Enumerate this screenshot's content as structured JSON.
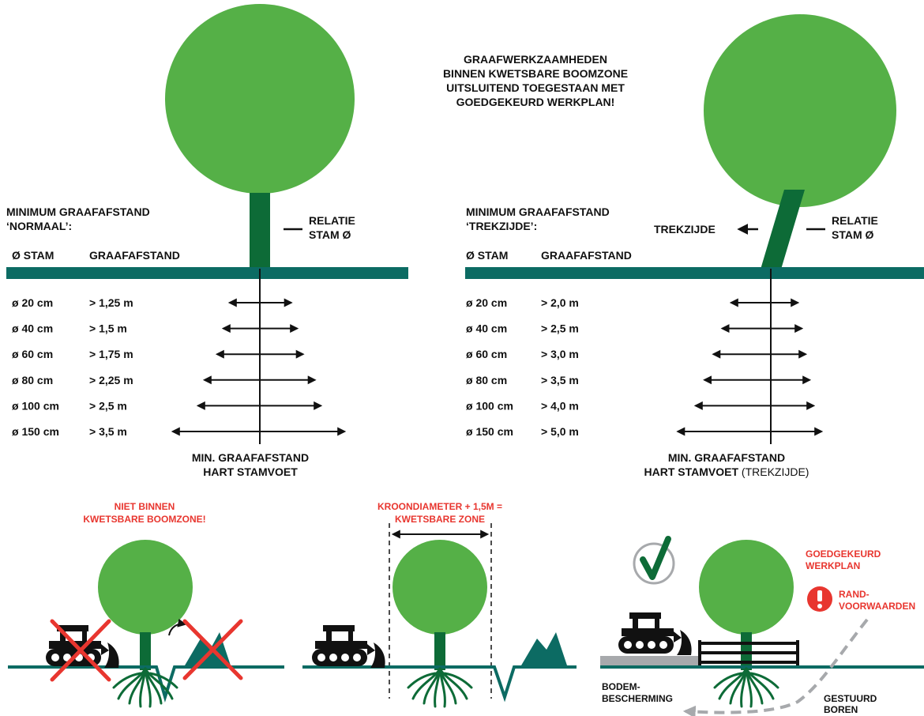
{
  "colors": {
    "tree_green": "#55b047",
    "trunk_green": "#0d6b37",
    "ground_teal": "#0c6b63",
    "warning_red": "#e8362f",
    "arrow_black": "#111111",
    "protection_gray": "#a7a9ac"
  },
  "notice": {
    "lines": [
      "GRAAFWERKZAAMHEDEN",
      "BINNEN KWETSBARE BOOMZONE",
      "UITSLUITEND TOEGESTAAN MET",
      "GOEDGEKEURD WERKPLAN!"
    ]
  },
  "normal": {
    "heading_line1": "MINIMUM GRAAFAFSTAND",
    "heading_line2": "‘NORMAAL’:",
    "col_stem": "Ø STAM",
    "col_distance": "GRAAFAFSTAND",
    "relation_line1": "RELATIE",
    "relation_line2": "STAM Ø",
    "rows": [
      {
        "stem": "ø  20 cm",
        "distance": "> 1,25 m",
        "distance_m": 1.25
      },
      {
        "stem": "ø  40 cm",
        "distance": "> 1,5 m",
        "distance_m": 1.5
      },
      {
        "stem": "ø  60 cm",
        "distance": "> 1,75 m",
        "distance_m": 1.75
      },
      {
        "stem": "ø  80 cm",
        "distance": "> 2,25 m",
        "distance_m": 2.25
      },
      {
        "stem": "ø 100 cm",
        "distance": "> 2,5 m",
        "distance_m": 2.5
      },
      {
        "stem": "ø 150 cm",
        "distance": "> 3,5 m",
        "distance_m": 3.5
      }
    ],
    "footer_line1": "MIN. GRAAFAFSTAND",
    "footer_line2": "HART STAMVOET"
  },
  "pull": {
    "heading_line1": "MINIMUM GRAAFAFSTAND",
    "heading_line2": "‘TREKZIJDE’:",
    "col_stem": "Ø STAM",
    "col_distance": "GRAAFAFSTAND",
    "pull_side_label": "TREKZIJDE",
    "relation_line1": "RELATIE",
    "relation_line2": "STAM Ø",
    "rows": [
      {
        "stem": "ø  20 cm",
        "distance": "> 2,0 m",
        "distance_m": 2.0
      },
      {
        "stem": "ø  40 cm",
        "distance": "> 2,5 m",
        "distance_m": 2.5
      },
      {
        "stem": "ø  60 cm",
        "distance": "> 3,0 m",
        "distance_m": 3.0
      },
      {
        "stem": "ø  80 cm",
        "distance": "> 3,5 m",
        "distance_m": 3.5
      },
      {
        "stem": "ø 100 cm",
        "distance": "> 4,0 m",
        "distance_m": 4.0
      },
      {
        "stem": "ø 150 cm",
        "distance": "> 5,0 m",
        "distance_m": 5.0
      }
    ],
    "footer_line1": "MIN. GRAAFAFSTAND",
    "footer_line2_bold": "HART STAMVOET",
    "footer_line2_normal": " (TREKZIJDE)"
  },
  "panel_not_allowed": {
    "label_line1": "NIET BINNEN",
    "label_line2": "KWETSBARE BOOMZONE!"
  },
  "panel_zone": {
    "label_line1": "KROONDIAMETER + 1,5M =",
    "label_line2": "KWETSBARE ZONE"
  },
  "panel_approved": {
    "approved_line1": "GOEDGEKEURD",
    "approved_line2": "WERKPLAN",
    "conditions_line1": "RAND-",
    "conditions_line2": "VOORWAARDEN",
    "soil_line1": "BODEM-",
    "soil_line2": "BESCHERMING",
    "drill_line1": "GESTUURD",
    "drill_line2": "BOREN",
    "check_icon": "checkmark-icon",
    "alert_icon": "exclamation-icon"
  }
}
